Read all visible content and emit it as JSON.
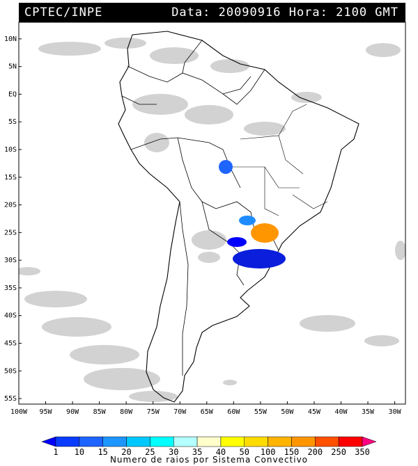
{
  "header": {
    "org": "CPTEC/INPE",
    "datetime": "Data: 20090916 Hora: 2100 GMT"
  },
  "map": {
    "lon_range": [
      -100,
      -28
    ],
    "lat_range": [
      -56,
      13
    ],
    "lat_labels": [
      "10N",
      "5N",
      "EQ",
      "5S",
      "10S",
      "15S",
      "20S",
      "25S",
      "30S",
      "35S",
      "40S",
      "45S",
      "50S",
      "55S"
    ],
    "lon_labels": [
      "100W",
      "95W",
      "90W",
      "85W",
      "80W",
      "75W",
      "70W",
      "65W",
      "60W",
      "55W",
      "50W",
      "45W",
      "40W",
      "35W",
      "30W"
    ],
    "lightning_systems": [
      {
        "name": "system-mato-grosso",
        "lon": -61.0,
        "lat": -13.0,
        "color": "#1e64ff"
      },
      {
        "name": "system-paraguay-north",
        "lon": -56.6,
        "lat": -24.6,
        "color": "#1e8cff"
      },
      {
        "name": "system-parana",
        "lon": -52.8,
        "lat": -25.8,
        "color": "#ff9600"
      },
      {
        "name": "system-chaco",
        "lon": -58.5,
        "lat": -27.0,
        "color": "#0000ff"
      },
      {
        "name": "system-rio-grande-do-sul",
        "lon": -54.0,
        "lat": -29.6,
        "color": "#0a1edc"
      }
    ]
  },
  "colorbar": {
    "caption": "Numero de raios por Sistema Convectivo",
    "labels": [
      "1",
      "10",
      "15",
      "20",
      "25",
      "30",
      "35",
      "40",
      "50",
      "100",
      "150",
      "200",
      "250",
      "350"
    ],
    "colors": [
      "#0000ff",
      "#0a3cff",
      "#1e64ff",
      "#1e96ff",
      "#00c8ff",
      "#00ffff",
      "#b4ffff",
      "#ffffcc",
      "#ffff00",
      "#ffdc00",
      "#ffb400",
      "#ff9600",
      "#ff5000",
      "#ff0000",
      "#ff0080"
    ]
  }
}
